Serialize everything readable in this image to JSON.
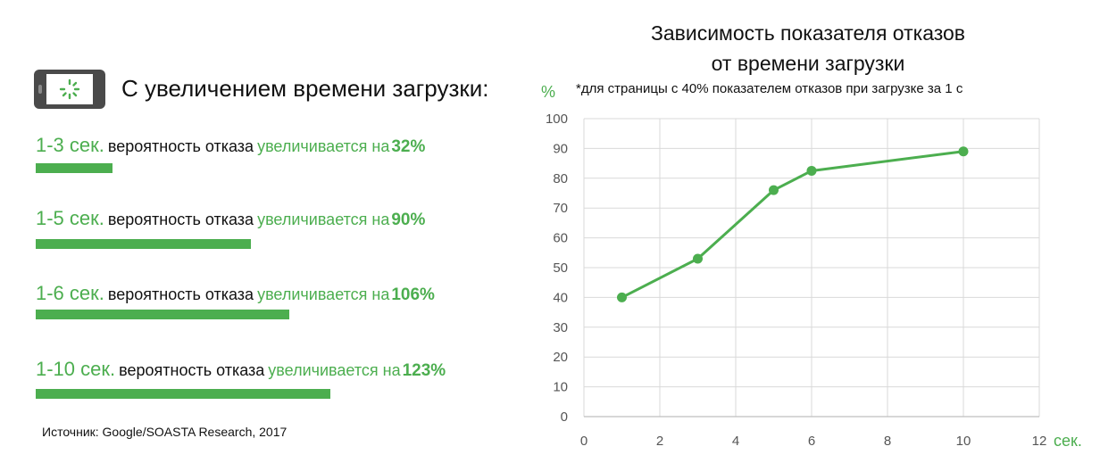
{
  "left_panel": {
    "headline": "С увеличением времени загрузки:",
    "rows": [
      {
        "range": "1-3 сек.",
        "label": "вероятность отказа",
        "trend": "увеличивается на",
        "percent": "32%",
        "value": 32
      },
      {
        "range": "1-5 сек.",
        "label": "вероятность отказа",
        "trend": "увеличивается на",
        "percent": "90%",
        "value": 90
      },
      {
        "range": "1-6 сек.",
        "label": "вероятность отказа",
        "trend": "увеличивается на",
        "percent": "106%",
        "value": 106
      },
      {
        "range": "1-10 сек.",
        "label": "вероятность отказа",
        "trend": "увеличивается на",
        "percent": "123%",
        "value": 123
      }
    ],
    "source": "Источник: Google/SOASTA Research, 2017"
  },
  "colors": {
    "accent": "#4cae4f",
    "text": "#111111",
    "grid": "#d9d9d9",
    "axis": "#bfbfbf"
  },
  "chart_data": {
    "type": "line",
    "title_line1": "Зависимость показателя отказов",
    "title_line2": "от времени загрузки",
    "note": "*для страницы с 40% показателем отказов при загрузке за 1 с",
    "ylabel": "%",
    "xlabel": "сек.",
    "xlim": [
      0,
      12
    ],
    "ylim": [
      0,
      100
    ],
    "x_ticks": [
      0,
      2,
      4,
      6,
      8,
      10,
      12
    ],
    "y_ticks": [
      0,
      10,
      20,
      30,
      40,
      50,
      60,
      70,
      80,
      90,
      100
    ],
    "grid": true,
    "x": [
      1,
      3,
      5,
      6,
      10
    ],
    "y": [
      40,
      53,
      76,
      82.5,
      89
    ]
  }
}
